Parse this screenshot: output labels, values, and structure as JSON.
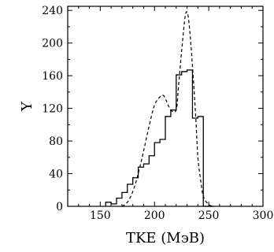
{
  "chart_data": {
    "type": "line",
    "xlabel": "TKE (МэВ)",
    "ylabel": "Y",
    "xlim": [
      120,
      300
    ],
    "ylim": [
      0,
      245
    ],
    "x_ticks": [
      150,
      200,
      250,
      300
    ],
    "y_ticks": [
      0,
      40,
      80,
      120,
      160,
      200,
      240
    ],
    "grid": false,
    "series": [
      {
        "style": "step",
        "color": "#000000",
        "bin_width": 5,
        "bin_edges": [
          155,
          160,
          165,
          170,
          175,
          180,
          185,
          190,
          195,
          200,
          205,
          210,
          215,
          220,
          225,
          230,
          235,
          240,
          245,
          250,
          255
        ],
        "values": [
          5,
          3,
          10,
          17,
          27,
          35,
          48,
          52,
          62,
          78,
          82,
          110,
          118,
          161,
          165,
          167,
          108,
          110,
          0,
          0
        ]
      },
      {
        "style": "dashed",
        "color": "#000000",
        "x": [
          170,
          175,
          180,
          185,
          190,
          195,
          200,
          205,
          208,
          210,
          215,
          220,
          222,
          225,
          228,
          230,
          232,
          235,
          238,
          240,
          243,
          245,
          250,
          255
        ],
        "values": [
          0,
          5,
          18,
          40,
          68,
          98,
          124,
          134,
          136,
          132,
          118,
          118,
          145,
          190,
          230,
          238,
          222,
          172,
          110,
          60,
          28,
          12,
          2,
          0
        ]
      }
    ]
  }
}
